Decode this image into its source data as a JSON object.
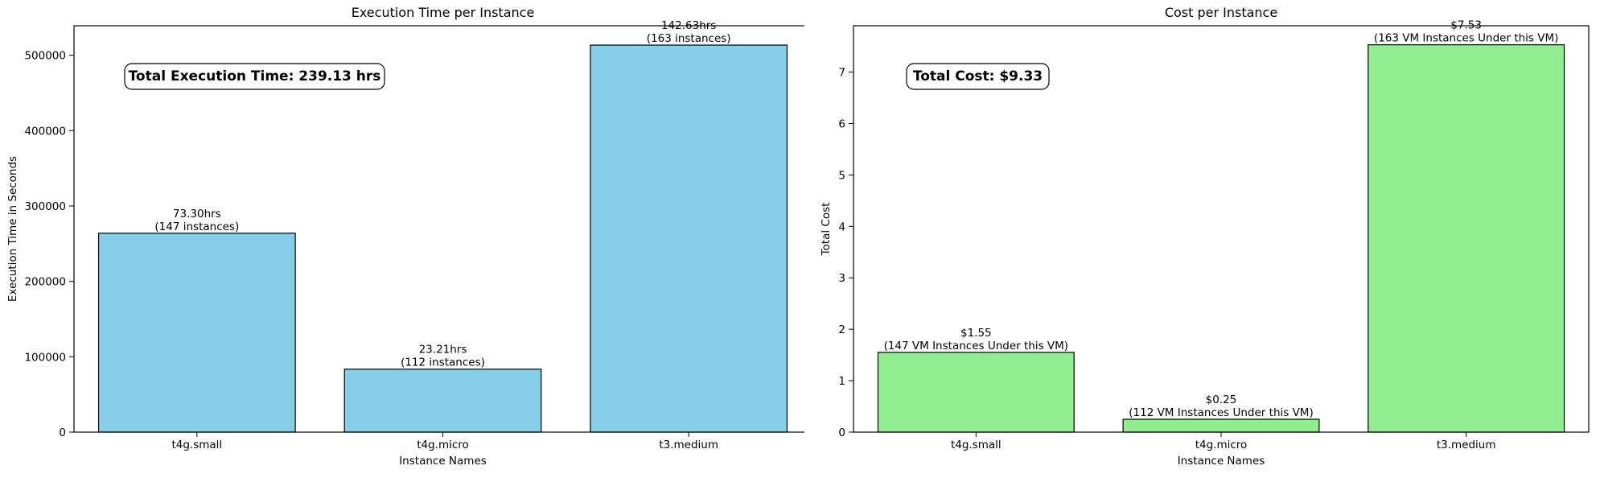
{
  "chart_data": [
    {
      "type": "bar",
      "title": "Execution Time per Instance",
      "xlabel": "Instance Names",
      "ylabel": "Execution Time in Seconds",
      "categories": [
        "t4g.small",
        "t4g.micro",
        "t3.medium"
      ],
      "values": [
        263880,
        83556,
        513468
      ],
      "ylim": [
        0,
        539141
      ],
      "yticks": [
        0,
        100000,
        200000,
        300000,
        400000,
        500000
      ],
      "ytick_labels": [
        "0",
        "100000",
        "200000",
        "300000",
        "400000",
        "500000"
      ],
      "bar_labels": [
        [
          "73.30hrs",
          "(147 instances)"
        ],
        [
          "23.21hrs",
          "(112 instances)"
        ],
        [
          "142.63hrs",
          "(163 instances)"
        ]
      ],
      "annotation": "Total Execution Time: 239.13 hrs",
      "bar_color": "#87CEEB",
      "grid": false
    },
    {
      "type": "bar",
      "title": "Cost per Instance",
      "xlabel": "Instance Names",
      "ylabel": "Total Cost",
      "categories": [
        "t4g.small",
        "t4g.micro",
        "t3.medium"
      ],
      "values": [
        1.55,
        0.25,
        7.53
      ],
      "ylim": [
        0,
        7.9
      ],
      "yticks": [
        0,
        1,
        2,
        3,
        4,
        5,
        6,
        7
      ],
      "ytick_labels": [
        "0",
        "1",
        "2",
        "3",
        "4",
        "5",
        "6",
        "7"
      ],
      "bar_labels": [
        [
          "$1.55",
          "(147 VM Instances Under this VM)"
        ],
        [
          "$0.25",
          "(112 VM Instances Under this VM)"
        ],
        [
          "$7.53",
          "(163 VM Instances Under this VM)"
        ]
      ],
      "annotation": "Total Cost: $9.33",
      "bar_color": "#90EE90",
      "grid": false
    }
  ]
}
